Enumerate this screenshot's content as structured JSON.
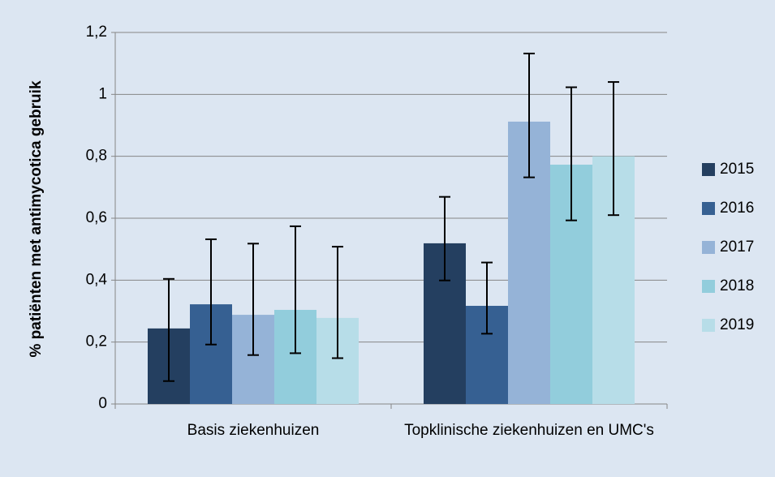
{
  "chart_data": {
    "type": "bar",
    "y_label": "% patiënten met antimycotica gebruik",
    "categories": [
      "Basis ziekenhuizen",
      "Topklinische ziekenhuizen en UMC's"
    ],
    "series": [
      {
        "name": "2015",
        "color": "#243f60",
        "values": [
          0.244,
          0.519
        ],
        "error_minus": [
          0.17,
          0.12
        ],
        "error_plus": [
          0.16,
          0.15
        ]
      },
      {
        "name": "2016",
        "color": "#366092",
        "values": [
          0.322,
          0.317
        ],
        "error_minus": [
          0.13,
          0.09
        ],
        "error_plus": [
          0.21,
          0.14
        ]
      },
      {
        "name": "2017",
        "color": "#95b3d7",
        "values": [
          0.288,
          0.912
        ],
        "error_minus": [
          0.13,
          0.18
        ],
        "error_plus": [
          0.23,
          0.22
        ]
      },
      {
        "name": "2018",
        "color": "#92cddc",
        "values": [
          0.304,
          0.773
        ],
        "error_minus": [
          0.14,
          0.18
        ],
        "error_plus": [
          0.27,
          0.25
        ]
      },
      {
        "name": "2019",
        "color": "#b7dde8",
        "values": [
          0.278,
          0.8
        ],
        "error_minus": [
          0.13,
          0.19
        ],
        "error_plus": [
          0.23,
          0.24
        ]
      }
    ],
    "ylim": [
      0,
      1.2
    ],
    "yticks": [
      0,
      {
        "value": 0.2,
        "label": "0,2"
      },
      {
        "value": 0.4,
        "label": "0,4"
      },
      {
        "value": 0.6,
        "label": "0,6"
      },
      {
        "value": 0.8,
        "label": "0,8"
      },
      1,
      {
        "value": 1.2,
        "label": "1,2"
      }
    ],
    "grid": true,
    "legend": "right"
  }
}
